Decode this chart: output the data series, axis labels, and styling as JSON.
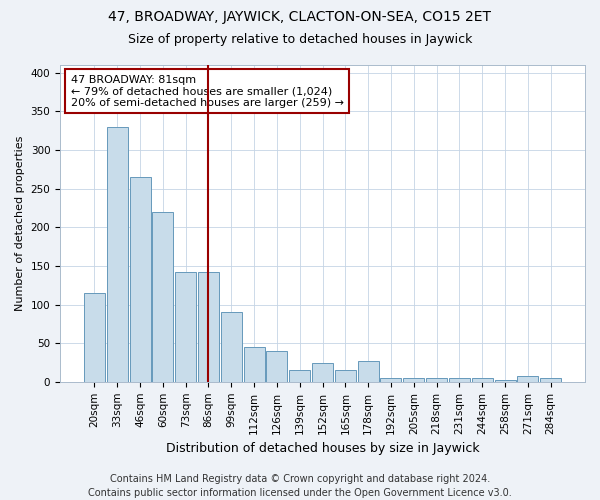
{
  "title": "47, BROADWAY, JAYWICK, CLACTON-ON-SEA, CO15 2ET",
  "subtitle": "Size of property relative to detached houses in Jaywick",
  "xlabel": "Distribution of detached houses by size in Jaywick",
  "ylabel": "Number of detached properties",
  "bar_labels": [
    "20sqm",
    "33sqm",
    "46sqm",
    "60sqm",
    "73sqm",
    "86sqm",
    "99sqm",
    "112sqm",
    "126sqm",
    "139sqm",
    "152sqm",
    "165sqm",
    "178sqm",
    "192sqm",
    "205sqm",
    "218sqm",
    "231sqm",
    "244sqm",
    "258sqm",
    "271sqm",
    "284sqm"
  ],
  "bar_values": [
    115,
    330,
    265,
    220,
    142,
    142,
    90,
    45,
    40,
    15,
    25,
    15,
    27,
    5,
    5,
    5,
    5,
    5,
    3,
    8,
    5
  ],
  "bar_color": "#c8dcea",
  "bar_edge_color": "#6699bb",
  "vline_x_index": 5,
  "vline_color": "#990000",
  "annotation_text": "47 BROADWAY: 81sqm\n← 79% of detached houses are smaller (1,024)\n20% of semi-detached houses are larger (259) →",
  "annotation_box_color": "#990000",
  "ylim": [
    0,
    410
  ],
  "yticks": [
    0,
    50,
    100,
    150,
    200,
    250,
    300,
    350,
    400
  ],
  "footer": "Contains HM Land Registry data © Crown copyright and database right 2024.\nContains public sector information licensed under the Open Government Licence v3.0.",
  "bg_color": "#eef2f7",
  "plot_bg_color": "#ffffff",
  "title_fontsize": 10,
  "subtitle_fontsize": 9,
  "xlabel_fontsize": 9,
  "ylabel_fontsize": 8,
  "tick_fontsize": 7.5,
  "footer_fontsize": 7,
  "annot_fontsize": 8
}
